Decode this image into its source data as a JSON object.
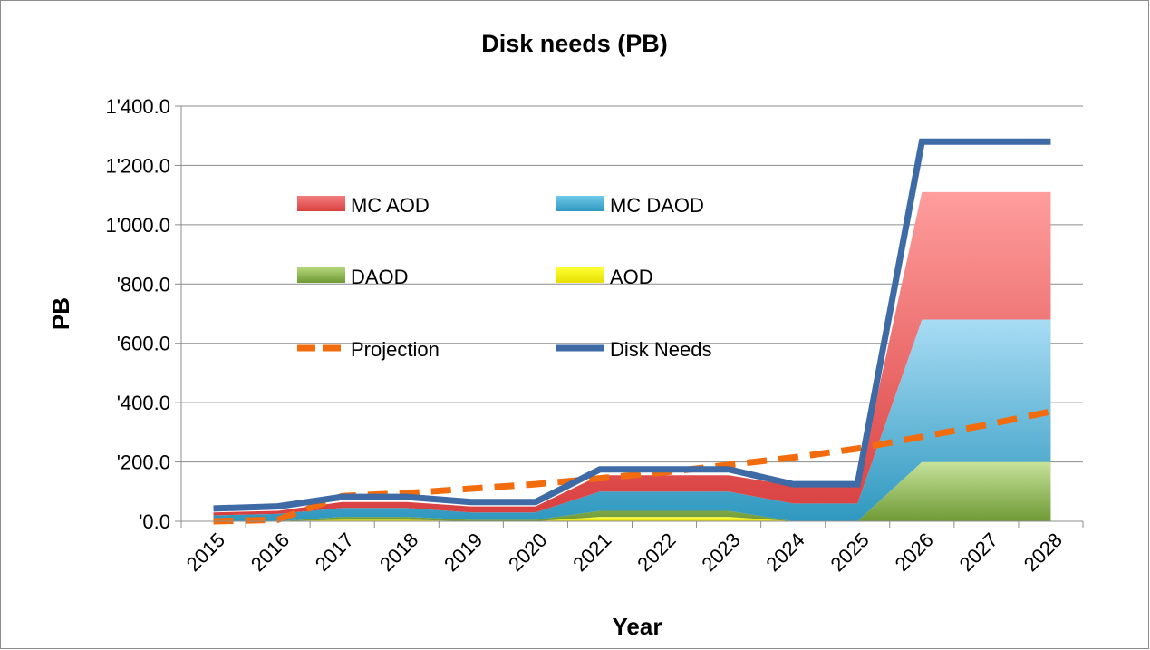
{
  "chart_data": {
    "type": "area",
    "title": "Disk needs (PB)",
    "xlabel": "Year",
    "ylabel": "PB",
    "x": [
      "2015",
      "2016",
      "2017",
      "2018",
      "2019",
      "2020",
      "2021",
      "2022",
      "2023",
      "2024",
      "2025",
      "2026",
      "2027",
      "2028"
    ],
    "ylim": [
      0,
      1400
    ],
    "yticks": [
      0,
      200,
      400,
      600,
      800,
      1000,
      1200,
      1400
    ],
    "ytick_labels": [
      "'0.0",
      "'200.0",
      "'400.0",
      "'600.0",
      "'800.0",
      "1'000.0",
      "1'200.0",
      "1'400.0"
    ],
    "grid": true,
    "legend_position": "inside-top-left",
    "stacked_series": [
      {
        "name": "AOD",
        "color": "#f2ef00",
        "values": [
          0,
          0,
          5,
          5,
          0,
          0,
          15,
          15,
          15,
          0,
          0,
          0,
          0,
          0
        ]
      },
      {
        "name": "DAOD",
        "color": "#8fb24a",
        "values": [
          0,
          0,
          10,
          10,
          5,
          5,
          20,
          20,
          20,
          0,
          0,
          200,
          200,
          200
        ]
      },
      {
        "name": "MC DAOD",
        "color": "#3aa5c9",
        "values": [
          20,
          25,
          30,
          30,
          25,
          25,
          65,
          65,
          65,
          60,
          60,
          480,
          480,
          480
        ]
      },
      {
        "name": "MC AOD",
        "color": "#e05656",
        "values": [
          10,
          10,
          20,
          20,
          20,
          20,
          55,
          55,
          55,
          60,
          60,
          430,
          430,
          430
        ]
      }
    ],
    "line_series": [
      {
        "name": "Projection",
        "color": "#f26c0d",
        "style": "dashed",
        "values": [
          0,
          5,
          85,
          95,
          110,
          125,
          145,
          165,
          190,
          215,
          245,
          285,
          325,
          370
        ]
      },
      {
        "name": "Disk Needs",
        "color": "#3e6aa5",
        "style": "solid",
        "values": [
          43,
          50,
          82,
          82,
          65,
          65,
          175,
          175,
          175,
          125,
          125,
          1280,
          1280,
          1280
        ]
      }
    ],
    "legend": [
      {
        "name": "MC AOD",
        "kind": "area"
      },
      {
        "name": "MC DAOD",
        "kind": "area"
      },
      {
        "name": "DAOD",
        "kind": "area"
      },
      {
        "name": "AOD",
        "kind": "area"
      },
      {
        "name": "Projection",
        "kind": "dashed-line"
      },
      {
        "name": "Disk Needs",
        "kind": "line"
      }
    ]
  }
}
